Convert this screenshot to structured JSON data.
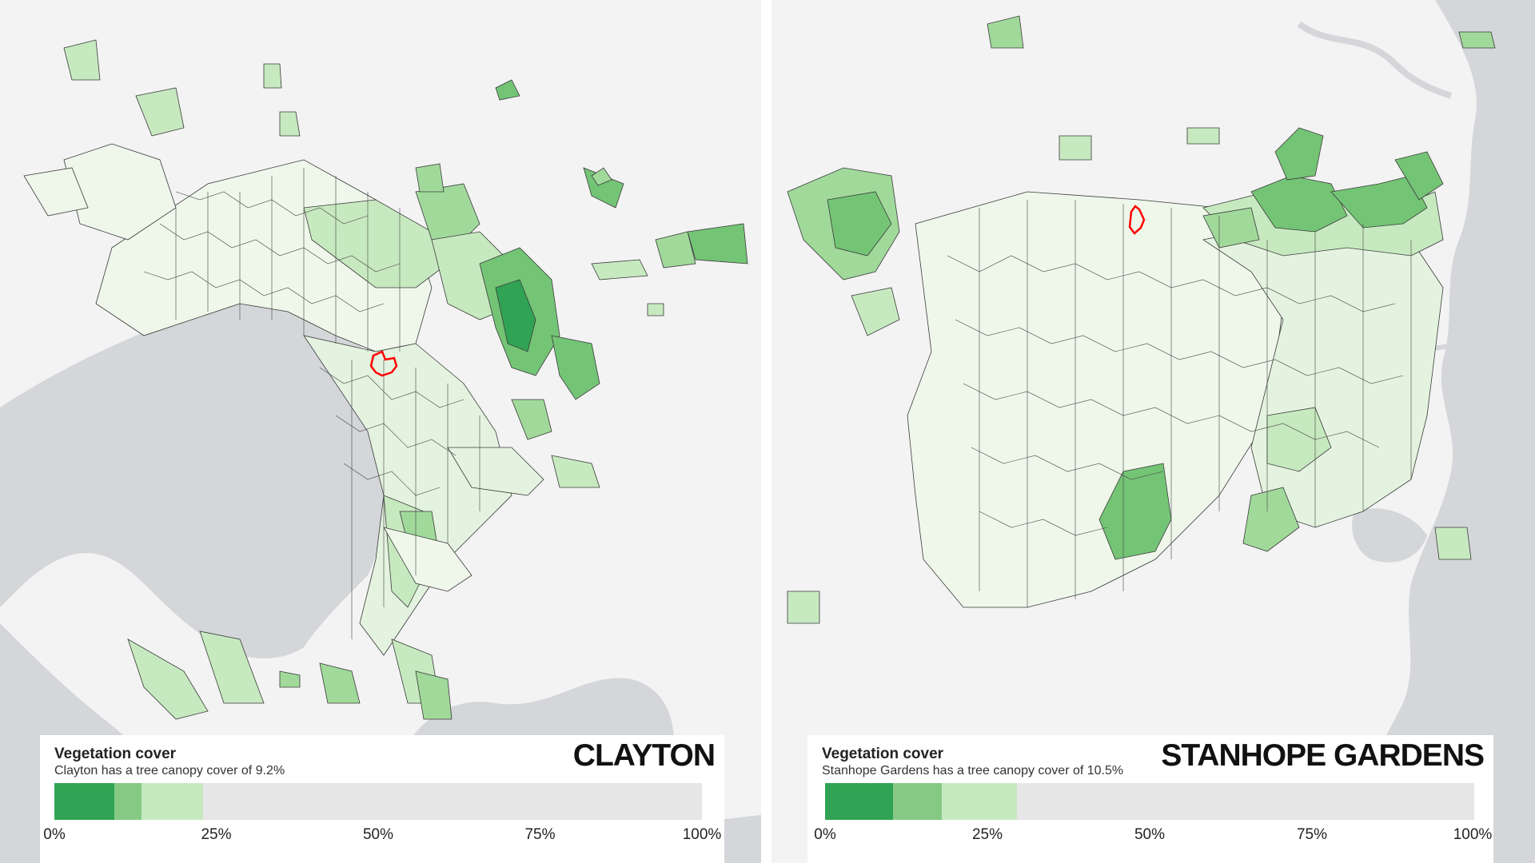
{
  "panels": [
    {
      "suburb": "CLAYTON",
      "legend_title": "Vegetation cover",
      "legend_subtitle": "Clayton has a tree canopy cover of 9.2%",
      "canopy_cover_pct": 9.2,
      "bar_segments": [
        {
          "from": 0,
          "to": 9.2,
          "color": "#31a354"
        },
        {
          "from": 9.2,
          "to": 13.5,
          "color": "#86c985"
        },
        {
          "from": 13.5,
          "to": 23,
          "color": "#c7e9c0"
        }
      ]
    },
    {
      "suburb": "STANHOPE GARDENS",
      "legend_title": "Vegetation cover",
      "legend_subtitle": "Stanhope Gardens has a tree canopy cover of 10.5%",
      "canopy_cover_pct": 10.5,
      "bar_segments": [
        {
          "from": 0,
          "to": 10.5,
          "color": "#31a354"
        },
        {
          "from": 10.5,
          "to": 18,
          "color": "#86c985"
        },
        {
          "from": 18,
          "to": 29.5,
          "color": "#c7e9c0"
        }
      ]
    }
  ],
  "scale_ticks": [
    "0%",
    "25%",
    "50%",
    "75%",
    "100%"
  ],
  "colors": {
    "land": "#f3f3f3",
    "water": "#d4d6d9",
    "region_light": "#eef7ea",
    "region_mid": "#c7e9c0",
    "region_dark": "#74c476",
    "region_darkest": "#31a354",
    "highlight": "#ff0000"
  }
}
